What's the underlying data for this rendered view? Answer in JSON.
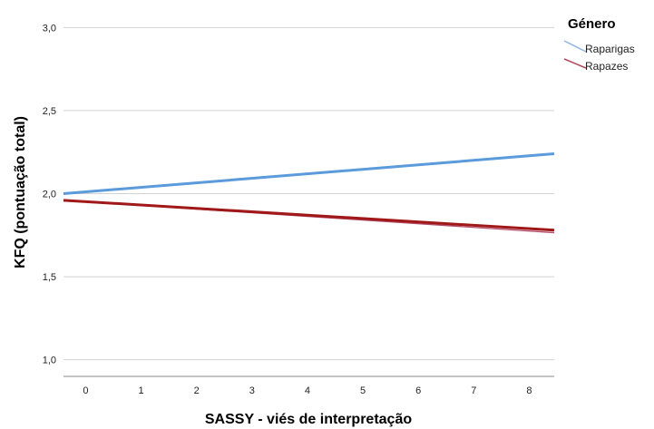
{
  "chart_data": {
    "type": "line",
    "xlabel": "SASSY - viés de interpretação",
    "ylabel": "KFQ (pontuação total)",
    "xlim": [
      -0.4,
      8.45
    ],
    "ylim": [
      0.9,
      3.1
    ],
    "x_ticks": [
      0,
      1,
      2,
      3,
      4,
      5,
      6,
      7,
      8
    ],
    "x_tick_labels": [
      "0",
      "1",
      "2",
      "3",
      "4",
      "5",
      "6",
      "7",
      "8"
    ],
    "y_ticks": [
      1.0,
      1.5,
      2.0,
      2.5,
      3.0
    ],
    "y_tick_labels": [
      "1,0",
      "1,5",
      "2,0",
      "2,5",
      "3,0"
    ],
    "grid": "horizontal",
    "legend": {
      "title": "Género",
      "placement": "top-right",
      "entries": [
        {
          "label": "Raparigas",
          "color": "#8fb4e3"
        },
        {
          "label": "Rapazes",
          "color": "#b14a5e"
        }
      ]
    },
    "series": [
      {
        "name": "Raparigas",
        "color": "#5b9bdb",
        "x": [
          -0.4,
          8.45
        ],
        "y": [
          2.0,
          2.24
        ]
      },
      {
        "name": "Rapazes",
        "color": "#a01818",
        "x": [
          -0.4,
          8.45
        ],
        "y": [
          1.96,
          1.78
        ]
      }
    ],
    "fit_lines": [
      {
        "series": "Rapazes",
        "color": "#b24a6a",
        "x": [
          -0.4,
          8.45
        ],
        "y": [
          1.96,
          1.765
        ]
      }
    ]
  }
}
